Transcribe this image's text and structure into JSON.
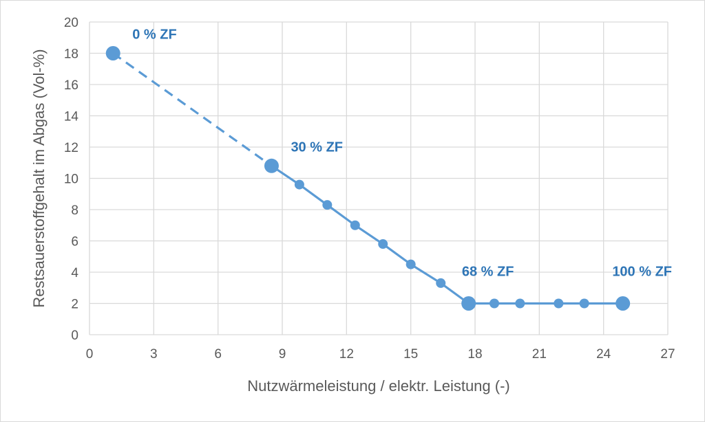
{
  "chart_data": {
    "type": "line",
    "xlabel": "Nutzwärmeleistung / elektr. Leistung (-)",
    "ylabel": "Restsauerstoffgehalt im Abgas (Vol-%)",
    "xlim": [
      0,
      27
    ],
    "ylim": [
      0,
      20
    ],
    "x_ticks": [
      "0",
      "3",
      "6",
      "9",
      "12",
      "15",
      "18",
      "21",
      "24",
      "27"
    ],
    "y_ticks": [
      "0",
      "2",
      "4",
      "6",
      "8",
      "10",
      "12",
      "14",
      "16",
      "18",
      "20"
    ],
    "grid": true,
    "color": "#5b9bd5",
    "annotation_color": "#2e75b6",
    "series": [
      {
        "style": "dashed",
        "points": [
          [
            1.1,
            18.0
          ],
          [
            8.5,
            10.8
          ]
        ]
      },
      {
        "style": "solid",
        "points": [
          [
            8.5,
            10.8
          ],
          [
            9.8,
            9.6
          ],
          [
            11.1,
            8.3
          ],
          [
            12.4,
            7.0
          ],
          [
            13.7,
            5.8
          ],
          [
            15.0,
            4.5
          ],
          [
            16.4,
            3.3
          ],
          [
            17.7,
            2.0
          ],
          [
            18.9,
            2.0
          ],
          [
            20.1,
            2.0
          ],
          [
            21.9,
            2.0
          ],
          [
            23.1,
            2.0
          ],
          [
            24.9,
            2.0
          ]
        ]
      }
    ],
    "highlight_points": [
      [
        1.1,
        18.0
      ],
      [
        8.5,
        10.8
      ],
      [
        17.7,
        2.0
      ],
      [
        24.9,
        2.0
      ]
    ],
    "annotations": [
      {
        "text": "0 % ZF",
        "x": 1.1,
        "y": 18.0,
        "placement": "upper-right"
      },
      {
        "text": "30 % ZF",
        "x": 8.5,
        "y": 10.8,
        "placement": "upper-right"
      },
      {
        "text": "68 % ZF",
        "x": 17.7,
        "y": 2.0,
        "placement": "above"
      },
      {
        "text": "100 % ZF",
        "x": 24.9,
        "y": 2.0,
        "placement": "above"
      }
    ]
  }
}
